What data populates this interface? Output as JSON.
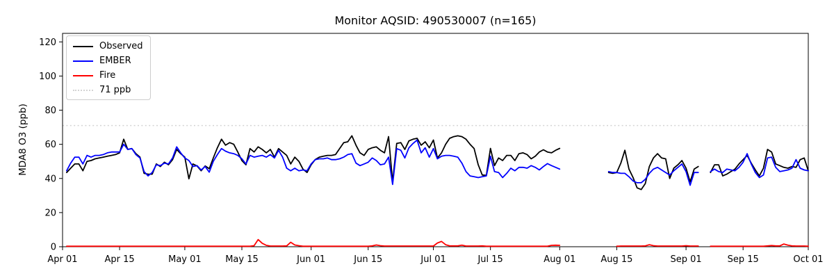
{
  "chart_data": {
    "type": "line",
    "title": "Monitor AQSID: 490530007 (n=165)",
    "xlabel": "",
    "ylabel": "MDA8 O3 (ppb)",
    "ylim": [
      0,
      125
    ],
    "yticks": [
      0,
      20,
      40,
      60,
      80,
      100,
      120
    ],
    "grid": false,
    "legend_position": "upper left",
    "x_unit": "daily values, day index 0 = Apr 01, last index 183 = Oct 01; null = missing day",
    "x_count": 184,
    "xticks": [
      {
        "day": 0,
        "label": "Apr 01"
      },
      {
        "day": 14,
        "label": "Apr 15"
      },
      {
        "day": 30,
        "label": "May 01"
      },
      {
        "day": 44,
        "label": "May 15"
      },
      {
        "day": 61,
        "label": "Jun 01"
      },
      {
        "day": 75,
        "label": "Jun 15"
      },
      {
        "day": 91,
        "label": "Jul 01"
      },
      {
        "day": 105,
        "label": "Jul 15"
      },
      {
        "day": 122,
        "label": "Aug 01"
      },
      {
        "day": 136,
        "label": "Aug 15"
      },
      {
        "day": 153,
        "label": "Sep 01"
      },
      {
        "day": 167,
        "label": "Sep 15"
      },
      {
        "day": 183,
        "label": "Oct 01"
      }
    ],
    "threshold": {
      "label": "71 ppb",
      "value": 71,
      "color": "#d3d3d3",
      "style": "dotted"
    },
    "series": [
      {
        "name": "Observed",
        "color": "#000000",
        "values": [
          null,
          43.5,
          46,
          48.5,
          48.5,
          44.5,
          50,
          50.5,
          51.5,
          52,
          52.5,
          53,
          53.5,
          54,
          55,
          63,
          57,
          57.5,
          54.5,
          52.5,
          43,
          42.5,
          42.5,
          48.5,
          47,
          49.5,
          48,
          51,
          57,
          54.5,
          52.5,
          39.8,
          48.5,
          47.3,
          44.5,
          47.3,
          45.7,
          52,
          58,
          63,
          59.5,
          61,
          60,
          55.5,
          50.5,
          48,
          57.5,
          55.5,
          58.5,
          57,
          55,
          57,
          52.5,
          57.5,
          55.5,
          53.5,
          48.5,
          52.5,
          50,
          45.5,
          43.5,
          48,
          51,
          52.5,
          53,
          53.5,
          53.5,
          54,
          57.5,
          61,
          61.5,
          65,
          59.5,
          55,
          53.5,
          57,
          58,
          58.5,
          56.5,
          55,
          64.5,
          38,
          60.5,
          61,
          57,
          62,
          63,
          63.5,
          59.5,
          61.5,
          58,
          62.5,
          52,
          55,
          60,
          63.5,
          64.5,
          65,
          64.5,
          63,
          60,
          57.5,
          48,
          42,
          41.8,
          57.6,
          47.5,
          52,
          50.5,
          53.5,
          53.5,
          50.5,
          54.5,
          55,
          54,
          51.5,
          53,
          55.5,
          56.8,
          55.5,
          55,
          56.5,
          57.6,
          null,
          null,
          null,
          null,
          null,
          null,
          null,
          null,
          null,
          null,
          null,
          43.5,
          43,
          43.5,
          49,
          56.5,
          45.5,
          40.5,
          34.5,
          33.5,
          37,
          47,
          52,
          54.5,
          52,
          51.5,
          40,
          46,
          48,
          50.5,
          46,
          38,
          45.5,
          47,
          null,
          null,
          43.5,
          48,
          48,
          41.5,
          42.5,
          44,
          45.5,
          48.5,
          51,
          53.5,
          49,
          45,
          41.5,
          46,
          57,
          55.5,
          48.5,
          47.5,
          46.5,
          46,
          47,
          46.5,
          51,
          52,
          44.5
        ]
      },
      {
        "name": "EMBER",
        "color": "#0000ff",
        "values": [
          null,
          44.5,
          49,
          52.5,
          52.5,
          48.5,
          53.5,
          52.5,
          53.5,
          53.5,
          54,
          55,
          55.5,
          55.5,
          55.5,
          60,
          57,
          57.5,
          54,
          52,
          44,
          41.5,
          43.5,
          48,
          47.5,
          49,
          48.5,
          52,
          58.5,
          55,
          52,
          50.5,
          47,
          47.5,
          45,
          47,
          43.7,
          50,
          54,
          57.5,
          56,
          55,
          54.5,
          53.5,
          51.5,
          48.5,
          53.5,
          52.5,
          53,
          53.5,
          52.5,
          54,
          52,
          56.5,
          52.5,
          46,
          44.5,
          46,
          44.5,
          45,
          44.5,
          48.5,
          51,
          51.5,
          51.5,
          52,
          51,
          51,
          51.5,
          52.5,
          54,
          54.5,
          49,
          47.5,
          48.5,
          49.5,
          52,
          50.5,
          48,
          48.5,
          52.5,
          36.5,
          57.5,
          56.5,
          52,
          58,
          60.5,
          62.5,
          55,
          58,
          52.5,
          57.5,
          51.5,
          53,
          53.5,
          53.5,
          53,
          52.5,
          49,
          44,
          41.5,
          41,
          40.5,
          41,
          41.5,
          53,
          44,
          43.5,
          40.5,
          43,
          46,
          44.5,
          46.5,
          46.5,
          46,
          47.5,
          46.5,
          45,
          47,
          48.7,
          47.5,
          46.5,
          45.5,
          null,
          null,
          null,
          null,
          null,
          null,
          null,
          null,
          null,
          null,
          null,
          44,
          43.5,
          43.5,
          43,
          43,
          41,
          38.5,
          37.5,
          37.5,
          39.5,
          43,
          45.5,
          46.5,
          45,
          43.5,
          42,
          44.5,
          46.5,
          48.5,
          44,
          36,
          43.5,
          43.5,
          null,
          null,
          44,
          45.5,
          44,
          43.5,
          45.5,
          45,
          44.5,
          46.5,
          49.5,
          54.5,
          48.5,
          43.5,
          40.5,
          42,
          52,
          52.5,
          46.5,
          44,
          44.5,
          45,
          46,
          51,
          46,
          45,
          44.5
        ]
      },
      {
        "name": "Fire",
        "color": "#ff0000",
        "values": [
          null,
          0.3,
          0.3,
          0.3,
          0.3,
          0.3,
          0.3,
          0.3,
          0.3,
          0.3,
          0.3,
          0.3,
          0.3,
          0.3,
          0.3,
          0.3,
          0.3,
          0.3,
          0.3,
          0.3,
          0.3,
          0.3,
          0.3,
          0.3,
          0.3,
          0.3,
          0.3,
          0.3,
          0.3,
          0.3,
          0.3,
          0.3,
          0.3,
          0.3,
          0.3,
          0.3,
          0.3,
          0.3,
          0.3,
          0.3,
          0.3,
          0.3,
          0.3,
          0.3,
          0.3,
          0.3,
          0.3,
          0.6,
          4.2,
          2.0,
          0.8,
          0.4,
          0.4,
          0.4,
          0.4,
          0.5,
          2.6,
          1.0,
          0.6,
          0.3,
          0.3,
          0.3,
          0.3,
          0.3,
          0.3,
          0.3,
          0.3,
          0.3,
          0.3,
          0.3,
          0.3,
          0.3,
          0.3,
          0.3,
          0.3,
          0.3,
          0.5,
          1.0,
          0.6,
          0.4,
          0.4,
          0.4,
          0.4,
          0.4,
          0.4,
          0.4,
          0.4,
          0.4,
          0.4,
          0.4,
          0.4,
          0.4,
          2.2,
          3.1,
          1.2,
          0.5,
          0.5,
          0.5,
          0.9,
          0.4,
          0.4,
          0.4,
          0.4,
          0.5,
          0.3,
          0.3,
          0.3,
          0.3,
          0.3,
          0.3,
          0.3,
          0.3,
          0.3,
          0.3,
          0.3,
          0.3,
          0.3,
          0.3,
          0.3,
          0.3,
          0.8,
          0.9,
          0.8,
          null,
          null,
          null,
          null,
          null,
          null,
          null,
          null,
          null,
          null,
          null,
          null,
          null,
          0.3,
          0.4,
          0.4,
          0.4,
          0.4,
          0.4,
          0.4,
          0.5,
          1.2,
          0.6,
          0.4,
          0.4,
          0.4,
          0.4,
          0.4,
          0.4,
          0.4,
          0.6,
          0.4,
          0.4,
          0.4,
          null,
          null,
          0.3,
          0.3,
          0.3,
          0.3,
          0.3,
          0.3,
          0.3,
          0.3,
          0.3,
          0.3,
          0.3,
          0.3,
          0.3,
          0.3,
          0.5,
          0.7,
          0.5,
          0.5,
          1.6,
          0.9,
          0.5,
          0.4,
          0.4,
          0.4,
          0.3
        ]
      }
    ]
  },
  "legend": {
    "items": [
      "Observed",
      "EMBER",
      "Fire",
      "71 ppb"
    ]
  }
}
